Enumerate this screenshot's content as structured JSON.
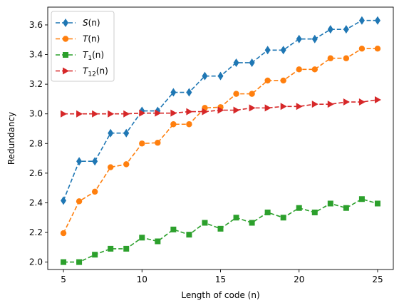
{
  "chart_data": {
    "type": "line",
    "title": "",
    "xlabel": "Length of code (n)",
    "ylabel": "Redundancy",
    "xlim": [
      4.0,
      26.0
    ],
    "ylim": [
      1.95,
      3.72
    ],
    "xticks": [
      5,
      10,
      15,
      20,
      25
    ],
    "yticks": [
      2.0,
      2.2,
      2.4,
      2.6,
      2.8,
      3.0,
      3.2,
      3.4,
      3.6
    ],
    "ytick_labels": [
      "2.0",
      "2.2",
      "2.4",
      "2.6",
      "2.8",
      "3.0",
      "3.2",
      "3.4",
      "3.6"
    ],
    "grid": false,
    "legend_position": "top-left",
    "x": [
      5,
      6,
      7,
      8,
      9,
      10,
      11,
      12,
      13,
      14,
      15,
      16,
      17,
      18,
      19,
      20,
      21,
      22,
      23,
      24,
      25
    ],
    "series": [
      {
        "name": "S(n)",
        "name_main": "S",
        "name_sub": "",
        "name_arg": "(n)",
        "color": "#1f77b4",
        "marker": "diamond",
        "values": [
          2.415,
          2.68,
          2.68,
          2.87,
          2.87,
          3.02,
          3.02,
          3.145,
          3.145,
          3.255,
          3.255,
          3.345,
          3.345,
          3.43,
          3.43,
          3.505,
          3.505,
          3.57,
          3.57,
          3.63,
          3.63
        ]
      },
      {
        "name": "T(n)",
        "name_main": "T",
        "name_sub": "",
        "name_arg": "(n)",
        "color": "#ff7f0e",
        "marker": "circle",
        "values": [
          2.195,
          2.41,
          2.475,
          2.64,
          2.66,
          2.8,
          2.805,
          2.93,
          2.93,
          3.04,
          3.045,
          3.135,
          3.135,
          3.225,
          3.225,
          3.3,
          3.3,
          3.375,
          3.375,
          3.44,
          3.44
        ]
      },
      {
        "name": "T1(n)",
        "name_main": "T",
        "name_sub": "1",
        "name_arg": "(n)",
        "color": "#2ca02c",
        "marker": "square",
        "values": [
          2.0,
          2.0,
          2.05,
          2.09,
          2.09,
          2.165,
          2.14,
          2.22,
          2.185,
          2.265,
          2.225,
          2.3,
          2.265,
          2.335,
          2.3,
          2.365,
          2.335,
          2.395,
          2.365,
          2.425,
          2.395
        ]
      },
      {
        "name": "T12(n)",
        "name_main": "T",
        "name_sub": "12",
        "name_arg": "(n)",
        "color": "#d62728",
        "marker": "triangle-right",
        "values": [
          3.0,
          3.0,
          3.0,
          3.0,
          3.0,
          3.005,
          3.005,
          3.005,
          3.015,
          3.015,
          3.025,
          3.025,
          3.04,
          3.04,
          3.05,
          3.05,
          3.065,
          3.065,
          3.08,
          3.08,
          3.095
        ]
      }
    ]
  }
}
